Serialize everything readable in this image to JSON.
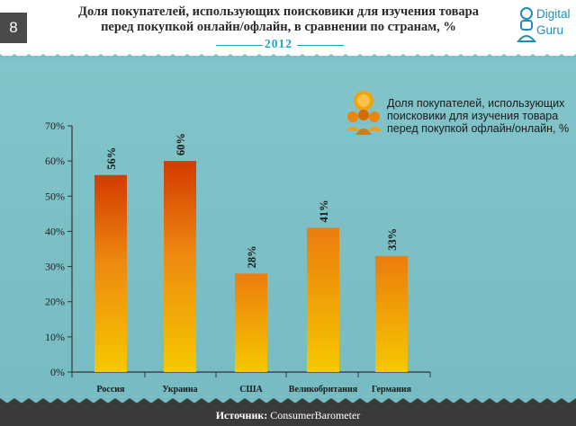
{
  "header": {
    "page_number": "8",
    "title_line1": "Доля покупателей, использующих поисковики для изучения товара",
    "title_line2": "перед покупкой онлайн/офлайн, в сравнении по странам, %",
    "subtitle": "2012",
    "logo_line1": "Digital",
    "logo_line2": "Guru"
  },
  "footer": {
    "source_label": "Источник:",
    "source_value": "ConsumerBarometer"
  },
  "legend": {
    "line1": "Доля покупателей, использующих",
    "line2": "поисковики для изучения товара",
    "line3": "перед покупкой офлайн/онлайн, %"
  },
  "colors": {
    "panel": "#7cc1c6",
    "bar_top_high": "#d33a00",
    "bar_top_mid": "#ea7a10",
    "bar_bottom": "#f4c200",
    "subtitle": "#1aa7c7"
  },
  "chart_data": {
    "type": "bar",
    "categories": [
      "Россия",
      "Украина",
      "США",
      "Великобритания",
      "Германия"
    ],
    "values": [
      56,
      60,
      28,
      41,
      33
    ],
    "value_labels": [
      "56%",
      "60%",
      "28%",
      "41%",
      "33%"
    ],
    "yticks": [
      "0%",
      "10%",
      "20%",
      "30%",
      "40%",
      "50%",
      "60%",
      "70%"
    ],
    "ylim": [
      0,
      70
    ],
    "grid": false,
    "legend_position": "top-right"
  }
}
